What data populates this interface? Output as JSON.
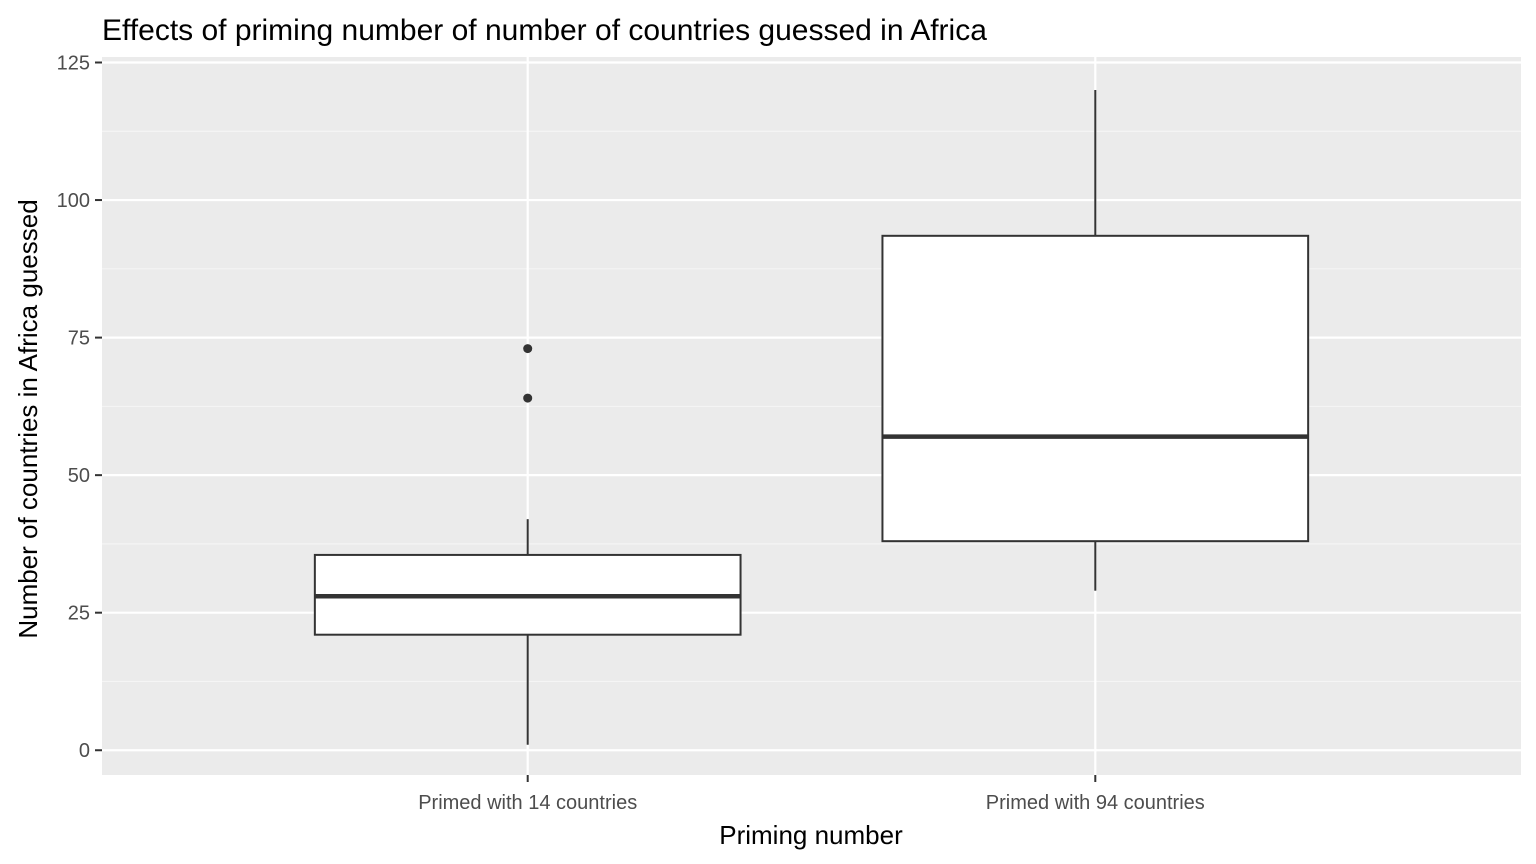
{
  "chart_data": {
    "type": "boxplot",
    "title": "Effects of priming number of number of countries guessed in Africa",
    "xlabel": "Priming number",
    "ylabel": "Number of countries in Africa guessed",
    "ylim": [
      -4.5,
      126
    ],
    "y_ticks": [
      0,
      25,
      50,
      75,
      100,
      125
    ],
    "y_tick_labels": [
      "0",
      "25",
      "50",
      "75",
      "100",
      "125"
    ],
    "categories": [
      "Primed with 14 countries",
      "Primed with 94 countries"
    ],
    "boxes": [
      {
        "category": "Primed with 14 countries",
        "lower_whisker": 1,
        "q1": 21,
        "median": 28,
        "q3": 35.5,
        "upper_whisker": 42,
        "outliers": [
          64,
          73
        ]
      },
      {
        "category": "Primed with 94 countries",
        "lower_whisker": 29,
        "q1": 38,
        "median": 57,
        "q3": 93.5,
        "upper_whisker": 120,
        "outliers": []
      }
    ],
    "grid": true,
    "legend": "none",
    "colors": {
      "panel_background": "#ebebeb",
      "grid_major": "#ffffff",
      "grid_minor": "#f5f5f5",
      "box_fill": "#ffffff",
      "box_line": "#333333",
      "tick_text": "#4d4d4d",
      "title_text": "#000000"
    }
  }
}
